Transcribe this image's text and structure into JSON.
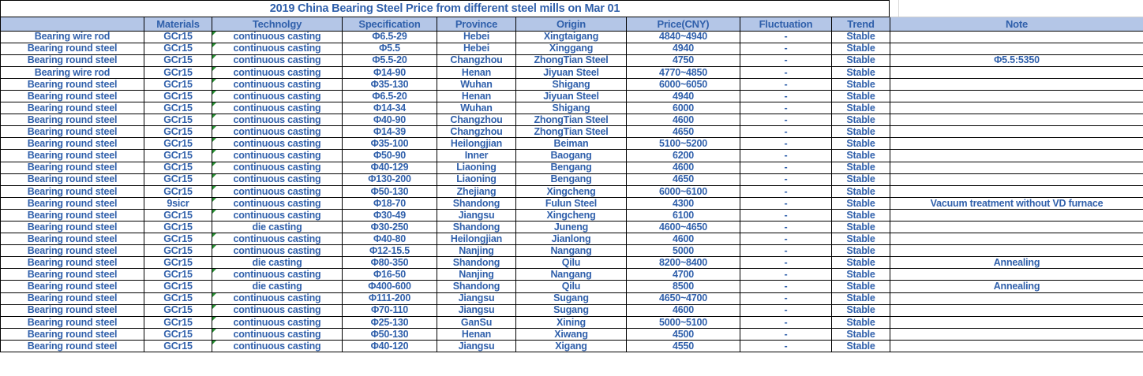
{
  "title": "2019 China Bearing Steel Price from different steel mills on Mar 01",
  "colors": {
    "text_blue": "#3060ab",
    "header_bg": "#b4c6e7",
    "border_black": "#000000",
    "error_indicator_green": "#2a9235"
  },
  "chart_data": {
    "type": "table",
    "columns": [
      {
        "key": "product",
        "label": ""
      },
      {
        "key": "materials",
        "label": "Materials"
      },
      {
        "key": "technology",
        "label": "Technolgy"
      },
      {
        "key": "specification",
        "label": "Specification"
      },
      {
        "key": "province",
        "label": "Province"
      },
      {
        "key": "origin",
        "label": "Origin"
      },
      {
        "key": "price",
        "label": "Price(CNY)"
      },
      {
        "key": "fluctuation",
        "label": "Fluctuation"
      },
      {
        "key": "trend",
        "label": "Trend"
      },
      {
        "key": "note",
        "label": "Note"
      }
    ],
    "rows": [
      {
        "product": "Bearing wire rod",
        "materials": "GCr15",
        "technology": "continuous casting",
        "tech_error_indicator": true,
        "specification": "Φ6.5-29",
        "province": "Hebei",
        "origin": "Xingtaigang",
        "price": "4840~4940",
        "fluctuation": "-",
        "trend": "Stable",
        "note": ""
      },
      {
        "product": "Bearing round steel",
        "materials": "GCr15",
        "technology": "continuous casting",
        "tech_error_indicator": true,
        "specification": "Φ5.5",
        "province": "Hebei",
        "origin": "Xinggang",
        "price": "4940",
        "fluctuation": "-",
        "trend": "Stable",
        "note": ""
      },
      {
        "product": "Bearing round steel",
        "materials": "GCr15",
        "technology": "continuous casting",
        "tech_error_indicator": true,
        "specification": "Φ5.5-20",
        "province": "Changzhou",
        "origin": "ZhongTian Steel",
        "price": "4750",
        "fluctuation": "-",
        "trend": "Stable",
        "note": "Φ5.5:5350"
      },
      {
        "product": "Bearing wire rod",
        "materials": "GCr15",
        "technology": "continuous casting",
        "tech_error_indicator": true,
        "specification": "Φ14-90",
        "province": "Henan",
        "origin": "Jiyuan Steel",
        "price": "4770~4850",
        "fluctuation": "-",
        "trend": "Stable",
        "note": ""
      },
      {
        "product": "Bearing round steel",
        "materials": "GCr15",
        "technology": "continuous casting",
        "tech_error_indicator": true,
        "specification": "Φ35-130",
        "province": "Wuhan",
        "origin": "Shigang",
        "price": "6000~6050",
        "fluctuation": "-",
        "trend": "Stable",
        "note": ""
      },
      {
        "product": "Bearing round steel",
        "materials": "GCr15",
        "technology": "continuous casting",
        "tech_error_indicator": true,
        "specification": "Φ6.5-20",
        "province": "Henan",
        "origin": "Jiyuan Steel",
        "price": "4940",
        "fluctuation": "-",
        "trend": "Stable",
        "note": ""
      },
      {
        "product": "Bearing round steel",
        "materials": "GCr15",
        "technology": "continuous casting",
        "tech_error_indicator": true,
        "specification": "Φ14-34",
        "province": "Wuhan",
        "origin": "Shigang",
        "price": "6000",
        "fluctuation": "-",
        "trend": "Stable",
        "note": ""
      },
      {
        "product": "Bearing round steel",
        "materials": "GCr15",
        "technology": "continuous casting",
        "tech_error_indicator": true,
        "specification": "Φ40-90",
        "province": "Changzhou",
        "origin": "ZhongTian Steel",
        "price": "4600",
        "fluctuation": "-",
        "trend": "Stable",
        "note": ""
      },
      {
        "product": "Bearing round steel",
        "materials": "GCr15",
        "technology": "continuous casting",
        "tech_error_indicator": true,
        "specification": "Φ14-39",
        "province": "Changzhou",
        "origin": "ZhongTian Steel",
        "price": "4650",
        "fluctuation": "-",
        "trend": "Stable",
        "note": ""
      },
      {
        "product": "Bearing round steel",
        "materials": "GCr15",
        "technology": "continuous casting",
        "tech_error_indicator": true,
        "specification": "Φ35-100",
        "province": "Heilongjian",
        "origin": "Beiman",
        "price": "5100~5200",
        "fluctuation": "-",
        "trend": "Stable",
        "note": ""
      },
      {
        "product": "Bearing round steel",
        "materials": "GCr15",
        "technology": "continuous casting",
        "tech_error_indicator": true,
        "specification": "Φ50-90",
        "province": "Inner",
        "origin": "Baogang",
        "price": "6200",
        "fluctuation": "-",
        "trend": "Stable",
        "note": ""
      },
      {
        "product": "Bearing round steel",
        "materials": "GCr15",
        "technology": "continuous casting",
        "tech_error_indicator": true,
        "specification": "Φ40-129",
        "province": "Liaoning",
        "origin": "Bengang",
        "price": "4600",
        "fluctuation": "-",
        "trend": "Stable",
        "note": ""
      },
      {
        "product": "Bearing round steel",
        "materials": "GCr15",
        "technology": "continuous casting",
        "tech_error_indicator": true,
        "specification": "Φ130-200",
        "province": "Liaoning",
        "origin": "Bengang",
        "price": "4650",
        "fluctuation": "-",
        "trend": "Stable",
        "note": ""
      },
      {
        "product": "Bearing round steel",
        "materials": "GCr15",
        "technology": "continuous casting",
        "tech_error_indicator": true,
        "specification": "Φ50-130",
        "province": "Zhejiang",
        "origin": "Xingcheng",
        "price": "6000~6100",
        "fluctuation": "-",
        "trend": "Stable",
        "note": ""
      },
      {
        "product": "Bearing round steel",
        "materials": "9sicr",
        "technology": "continuous casting",
        "tech_error_indicator": true,
        "specification": "Φ18-70",
        "province": "Shandong",
        "origin": "Fulun Steel",
        "price": "4300",
        "fluctuation": "-",
        "trend": "Stable",
        "note": "Vacuum treatment without VD furnace"
      },
      {
        "product": "Bearing round steel",
        "materials": "GCr15",
        "technology": "continuous casting",
        "tech_error_indicator": true,
        "specification": "Φ30-49",
        "province": "Jiangsu",
        "origin": "Xingcheng",
        "price": "6100",
        "fluctuation": "-",
        "trend": "Stable",
        "note": ""
      },
      {
        "product": "Bearing round steel",
        "materials": "GCr15",
        "technology": "die casting",
        "tech_error_indicator": false,
        "specification": "Φ30-250",
        "province": "Shandong",
        "origin": "Juneng",
        "price": "4600~4650",
        "fluctuation": "-",
        "trend": "Stable",
        "note": ""
      },
      {
        "product": "Bearing round steel",
        "materials": "GCr15",
        "technology": "continuous casting",
        "tech_error_indicator": true,
        "specification": "Φ40-80",
        "province": "Heilongjian",
        "origin": "Jianlong",
        "price": "4600",
        "fluctuation": "-",
        "trend": "Stable",
        "note": ""
      },
      {
        "product": "Bearing round steel",
        "materials": "GCr15",
        "technology": "continuous casting",
        "tech_error_indicator": true,
        "specification": "Φ12-15.5",
        "province": "Nanjing",
        "origin": "Nangang",
        "price": "5000",
        "fluctuation": "-",
        "trend": "Stable",
        "note": ""
      },
      {
        "product": "Bearing round steel",
        "materials": "GCr15",
        "technology": "die casting",
        "tech_error_indicator": false,
        "specification": "Φ80-350",
        "province": "Shandong",
        "origin": "Qilu",
        "price": "8200~8400",
        "fluctuation": "-",
        "trend": "Stable",
        "note": "Annealing"
      },
      {
        "product": "Bearing round steel",
        "materials": "GCr15",
        "technology": "continuous casting",
        "tech_error_indicator": true,
        "specification": "Φ16-50",
        "province": "Nanjing",
        "origin": "Nangang",
        "price": "4700",
        "fluctuation": "-",
        "trend": "Stable",
        "note": ""
      },
      {
        "product": "Bearing round steel",
        "materials": "GCr15",
        "technology": "die casting",
        "tech_error_indicator": false,
        "specification": "Φ400-600",
        "province": "Shandong",
        "origin": "Qilu",
        "price": "8500",
        "fluctuation": "-",
        "trend": "Stable",
        "note": "Annealing"
      },
      {
        "product": "Bearing round steel",
        "materials": "GCr15",
        "technology": "continuous casting",
        "tech_error_indicator": true,
        "specification": "Φ111-200",
        "province": "Jiangsu",
        "origin": "Sugang",
        "price": "4650~4700",
        "fluctuation": "-",
        "trend": "Stable",
        "note": ""
      },
      {
        "product": "Bearing round steel",
        "materials": "GCr15",
        "technology": "continuous casting",
        "tech_error_indicator": true,
        "specification": "Φ70-110",
        "province": "Jiangsu",
        "origin": "Sugang",
        "price": "4600",
        "fluctuation": "-",
        "trend": "Stable",
        "note": ""
      },
      {
        "product": "Bearing round steel",
        "materials": "GCr15",
        "technology": "continuous casting",
        "tech_error_indicator": true,
        "specification": "Φ25-130",
        "province": "GanSu",
        "origin": "Xining",
        "price": "5000~5100",
        "fluctuation": "-",
        "trend": "Stable",
        "note": ""
      },
      {
        "product": "Bearing round steel",
        "materials": "GCr15",
        "technology": "continuous casting",
        "tech_error_indicator": true,
        "specification": "Φ50-130",
        "province": "Henan",
        "origin": "Xiwang",
        "price": "4500",
        "fluctuation": "-",
        "trend": "Stable",
        "note": ""
      },
      {
        "product": "Bearing round steel",
        "materials": "GCr15",
        "technology": "continuous casting",
        "tech_error_indicator": true,
        "specification": "Φ40-120",
        "province": "Jiangsu",
        "origin": "Xigang",
        "price": "4550",
        "fluctuation": "-",
        "trend": "Stable",
        "note": ""
      }
    ]
  }
}
